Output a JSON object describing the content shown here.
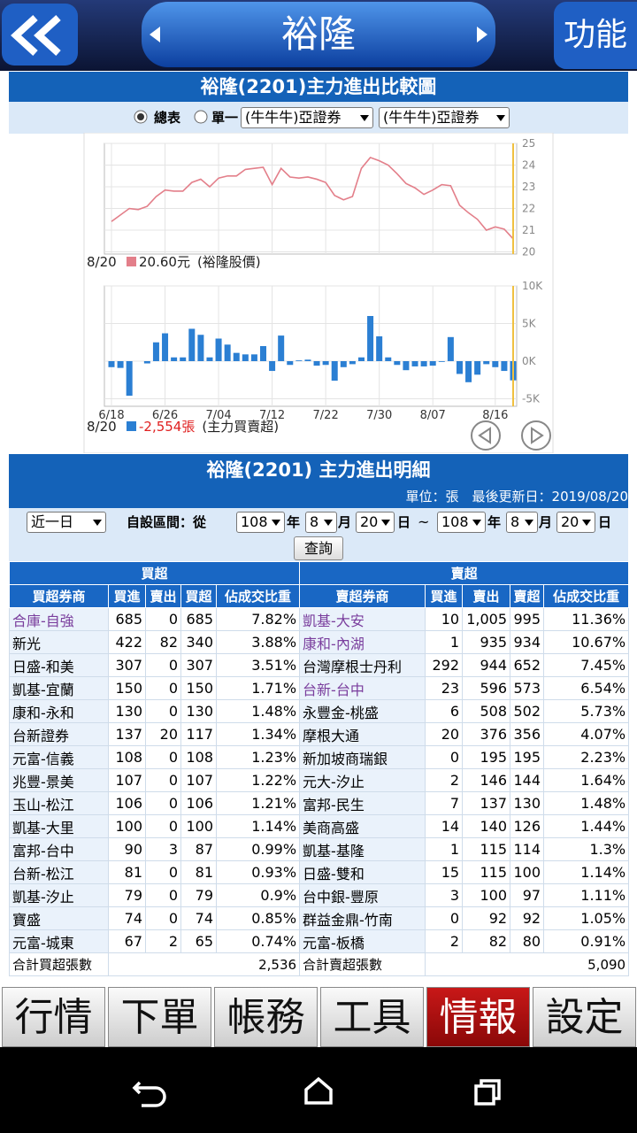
{
  "header": {
    "title": "裕隆",
    "menu": "功能"
  },
  "chart_section": {
    "title": "裕隆(2201)主力進出比較圖",
    "radio_all": "總表",
    "radio_single": "單一",
    "select_1": "(牛牛牛)亞證券",
    "select_2": "(牛牛牛)亞證券"
  },
  "chart_data": [
    {
      "type": "line",
      "color": "#e37f8a",
      "values": [
        21.4,
        21.7,
        22.0,
        21.95,
        22.1,
        22.55,
        22.85,
        22.8,
        22.8,
        23.2,
        23.35,
        23.0,
        23.4,
        23.5,
        23.5,
        23.8,
        23.85,
        23.9,
        23.1,
        23.85,
        23.45,
        23.4,
        23.45,
        23.35,
        23.2,
        22.6,
        22.4,
        22.55,
        23.85,
        24.35,
        24.2,
        24.0,
        23.6,
        23.15,
        22.95,
        22.65,
        22.85,
        23.1,
        23.05,
        22.15,
        21.8,
        21.5,
        21.0,
        21.15,
        21.05,
        20.6
      ],
      "ylim": [
        19.9,
        25
      ],
      "yticks": [
        20,
        21,
        22,
        23,
        24,
        25
      ],
      "grid": true,
      "legend": {
        "date": "8/20",
        "value": "20.60元",
        "label": "(裕隆股價)"
      }
    },
    {
      "type": "bar",
      "color": "#2b7fd3",
      "categories": [
        "6/18",
        null,
        null,
        null,
        null,
        null,
        "6/26",
        null,
        null,
        null,
        null,
        null,
        "7/04",
        null,
        null,
        null,
        null,
        null,
        "7/12",
        null,
        null,
        null,
        null,
        null,
        "7/22",
        null,
        null,
        null,
        null,
        null,
        "7/30",
        null,
        null,
        null,
        null,
        null,
        "8/07",
        null,
        null,
        null,
        null,
        null,
        null,
        "8/16",
        null,
        null
      ],
      "values": [
        -800,
        -900,
        -4600,
        0,
        -300,
        2500,
        3700,
        500,
        500,
        4300,
        3500,
        500,
        3000,
        2200,
        1100,
        900,
        900,
        2000,
        -1300,
        3400,
        -500,
        100,
        200,
        -600,
        -500,
        -2600,
        -800,
        -400,
        500,
        6000,
        3300,
        500,
        -500,
        -1200,
        -700,
        -700,
        -600,
        -100,
        3200,
        -1700,
        -2800,
        -1800,
        -400,
        -800,
        -1300,
        -2554
      ],
      "ylim": [
        -6000,
        10000
      ],
      "yticks": [
        {
          "value": -5000,
          "label": "-5K"
        },
        {
          "value": 0,
          "label": "0K"
        },
        {
          "value": 5000,
          "label": "5K"
        },
        {
          "value": 10000,
          "label": "10K"
        }
      ],
      "grid": true,
      "legend": {
        "date": "8/20",
        "value": "-2,554張",
        "label": "(主力買賣超)"
      },
      "value_color": "#e02020"
    }
  ],
  "detail": {
    "title": "裕隆(2201) 主力進出明細",
    "unit": "單位：張　最後更新日：2019/08/20",
    "period": "近一日",
    "range_label": "自設區間：從",
    "from": [
      "108",
      "年",
      "8",
      "月",
      "20",
      "日"
    ],
    "sep": "~",
    "to": [
      "108",
      "年",
      "8",
      "月",
      "20",
      "日"
    ],
    "query": "查詢"
  },
  "table": {
    "groups": [
      "買超",
      "賣超"
    ],
    "columns": [
      "買超券商",
      "買進",
      "賣出",
      "買超",
      "佔成交比重",
      "賣超券商",
      "買進",
      "賣出",
      "賣超",
      "佔成交比重"
    ],
    "rows": [
      [
        "合庫-自強",
        "685",
        "0",
        "685",
        "7.82%",
        "凱基-大安",
        "10",
        "1,005",
        "995",
        "11.36%"
      ],
      [
        "新光",
        "422",
        "82",
        "340",
        "3.88%",
        "康和-內湖",
        "1",
        "935",
        "934",
        "10.67%"
      ],
      [
        "日盛-和美",
        "307",
        "0",
        "307",
        "3.51%",
        "台灣摩根士丹利",
        "292",
        "944",
        "652",
        "7.45%"
      ],
      [
        "凱基-宜蘭",
        "150",
        "0",
        "150",
        "1.71%",
        "台新-台中",
        "23",
        "596",
        "573",
        "6.54%"
      ],
      [
        "康和-永和",
        "130",
        "0",
        "130",
        "1.48%",
        "永豐金-桃盛",
        "6",
        "508",
        "502",
        "5.73%"
      ],
      [
        "台新證券",
        "137",
        "20",
        "117",
        "1.34%",
        "摩根大通",
        "20",
        "376",
        "356",
        "4.07%"
      ],
      [
        "元富-信義",
        "108",
        "0",
        "108",
        "1.23%",
        "新加坡商瑞銀",
        "0",
        "195",
        "195",
        "2.23%"
      ],
      [
        "兆豐-景美",
        "107",
        "0",
        "107",
        "1.22%",
        "元大-汐止",
        "2",
        "146",
        "144",
        "1.64%"
      ],
      [
        "玉山-松江",
        "106",
        "0",
        "106",
        "1.21%",
        "富邦-民生",
        "7",
        "137",
        "130",
        "1.48%"
      ],
      [
        "凱基-大里",
        "100",
        "0",
        "100",
        "1.14%",
        "美商高盛",
        "14",
        "140",
        "126",
        "1.44%"
      ],
      [
        "富邦-台中",
        "90",
        "3",
        "87",
        "0.99%",
        "凱基-基隆",
        "1",
        "115",
        "114",
        "1.3%"
      ],
      [
        "台新-松江",
        "81",
        "0",
        "81",
        "0.93%",
        "日盛-雙和",
        "15",
        "115",
        "100",
        "1.14%"
      ],
      [
        "凱基-汐止",
        "79",
        "0",
        "79",
        "0.9%",
        "台中銀-豐原",
        "3",
        "100",
        "97",
        "1.11%"
      ],
      [
        "寶盛",
        "74",
        "0",
        "74",
        "0.85%",
        "群益金鼎-竹南",
        "0",
        "92",
        "92",
        "1.05%"
      ],
      [
        "元富-城東",
        "67",
        "2",
        "65",
        "0.74%",
        "元富-板橋",
        "2",
        "82",
        "80",
        "0.91%"
      ]
    ],
    "total": [
      "合計買超張數",
      "2,536",
      "合計賣超張數",
      "5,090"
    ]
  },
  "tabs": [
    "行情",
    "下單",
    "帳務",
    "工具",
    "情報",
    "設定"
  ],
  "active_tab": 4
}
